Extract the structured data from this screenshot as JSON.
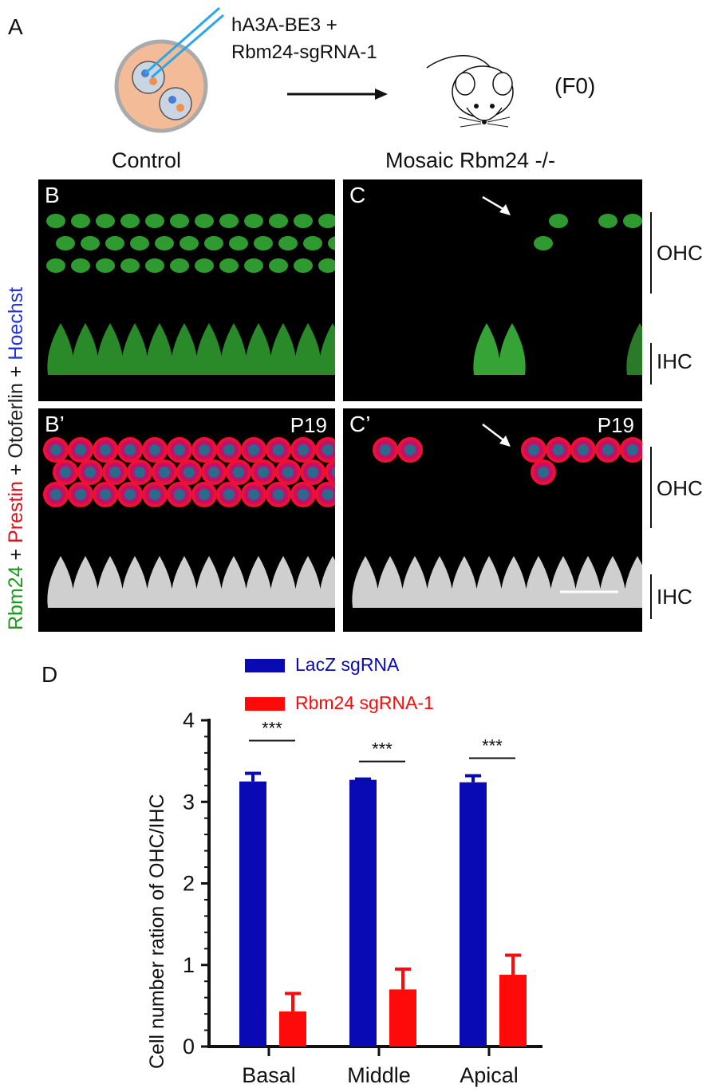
{
  "panel_a": {
    "label": "A",
    "injection_line1": "hA3A-BE3 +",
    "injection_line2": "Rbm24-sgRNA-1",
    "generation": "(F0)"
  },
  "columns": {
    "control": "Control",
    "mosaic": "Mosaic Rbm24 -/-"
  },
  "stain_label": {
    "rbm24": "Rbm24",
    "plus1": " + ",
    "prestin": "Prestin",
    "plus2": " + ",
    "otoferlin": "Otoferlin",
    "plus3": " + ",
    "hoechst": "Hoechst",
    "colors": {
      "rbm24": "#1a9a1a",
      "prestin": "#e0101a",
      "otoferlin": "#222222",
      "hoechst": "#2233dd"
    }
  },
  "panels": {
    "b": {
      "label": "B"
    },
    "c": {
      "label": "C"
    },
    "b_prime": {
      "label": "B’",
      "age": "P19"
    },
    "c_prime": {
      "label": "C’",
      "age": "P19"
    }
  },
  "side_labels": {
    "ohc": "OHC",
    "ihc": "IHC"
  },
  "panel_d": {
    "label": "D"
  },
  "chart_data": {
    "type": "bar",
    "categories": [
      "Basal",
      "Middle",
      "Apical"
    ],
    "ylabel": "Cell number ration of OHC/IHC",
    "xlabel": "",
    "ylim": [
      0,
      4
    ],
    "yticks": [
      "0",
      "1",
      "2",
      "3",
      "4"
    ],
    "legend_position": "top",
    "series": [
      {
        "name": "LacZ sgRNA",
        "color": "#0a0ab4",
        "values": [
          3.25,
          3.27,
          3.24
        ],
        "errors": [
          0.1,
          0.01,
          0.08
        ]
      },
      {
        "name": "Rbm24 sgRNA-1",
        "color": "#ff0a0a",
        "values": [
          0.43,
          0.7,
          0.88
        ],
        "errors": [
          0.22,
          0.25,
          0.24
        ]
      }
    ],
    "significance": [
      "***",
      "***",
      "***"
    ]
  }
}
